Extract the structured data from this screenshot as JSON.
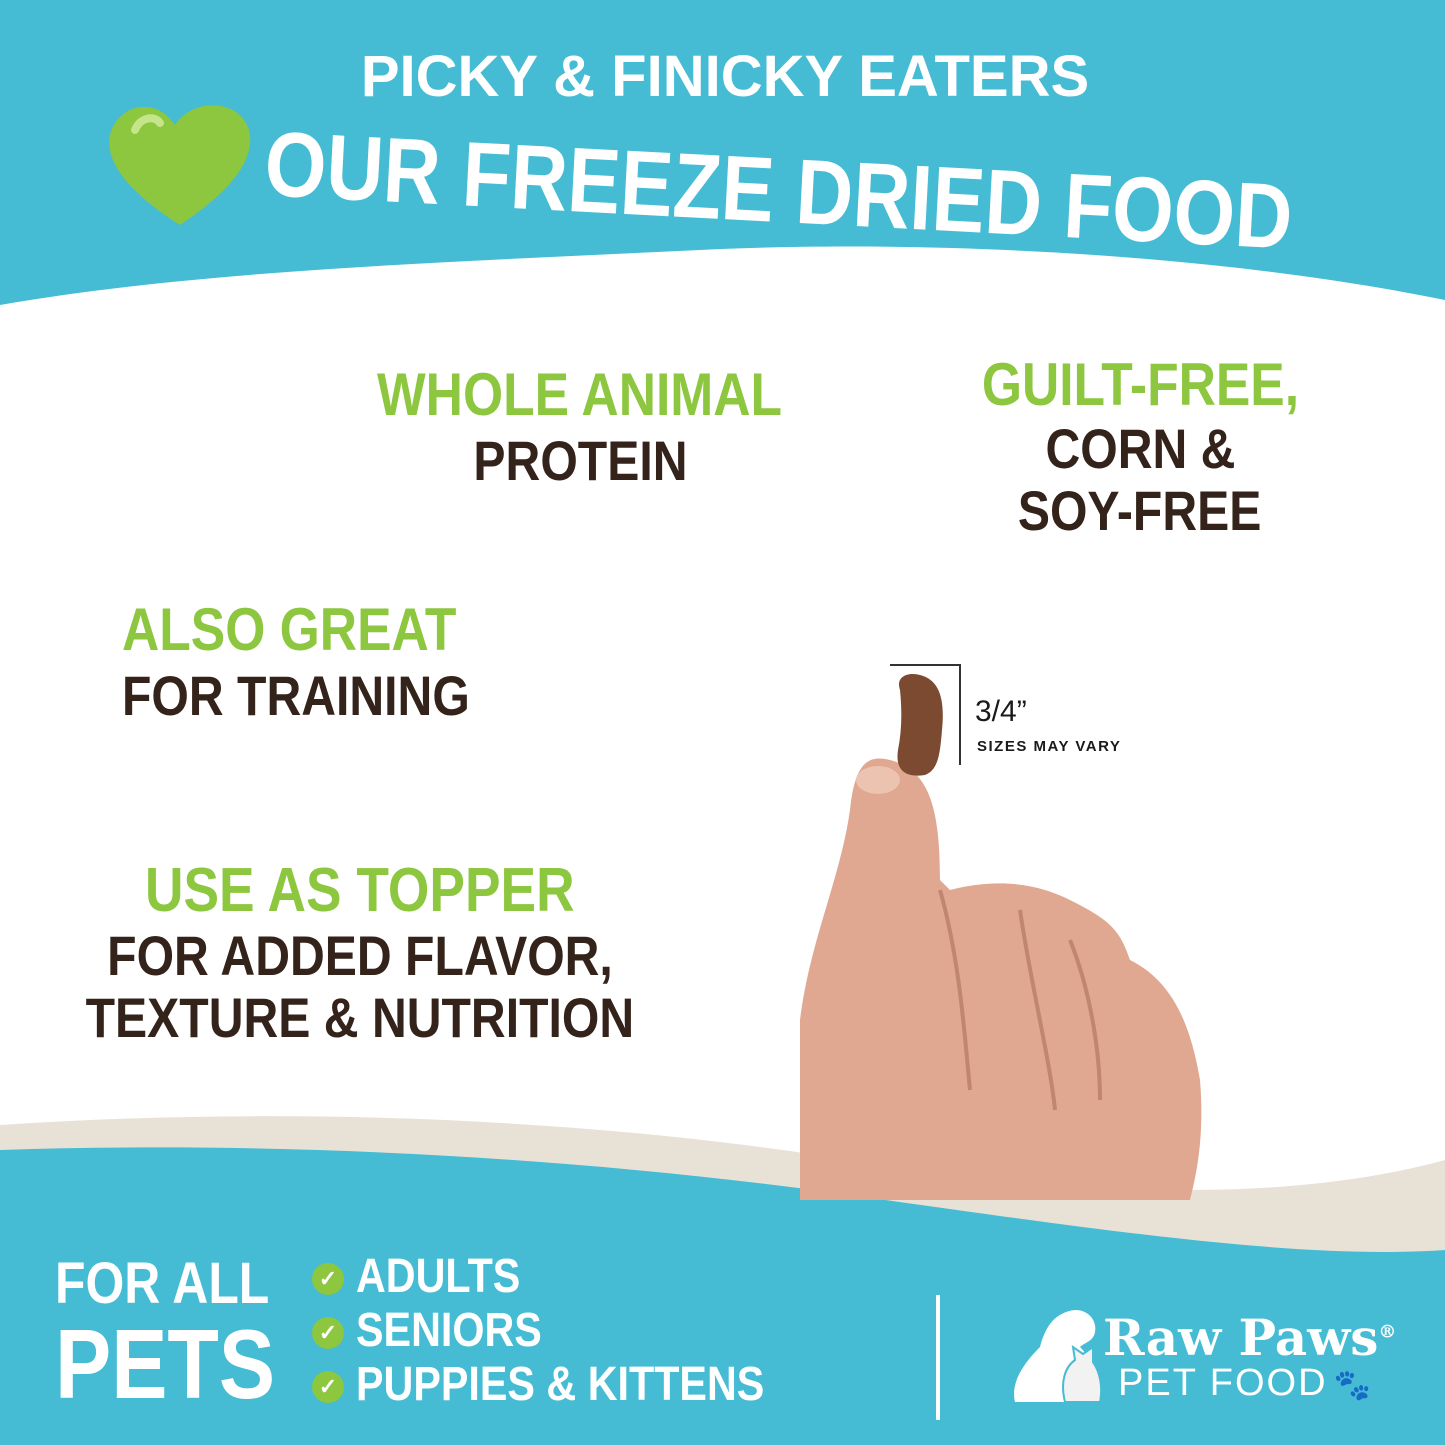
{
  "colors": {
    "teal": "#45bcd3",
    "green": "#8dc63f",
    "brown": "#33231a",
    "beige": "#e8e2d6"
  },
  "header": {
    "subtitle": "PICKY & FINICKY EATERS",
    "title": "OUR FREEZE DRIED FOOD",
    "icon": "heart-icon"
  },
  "features": [
    {
      "highlight": "WHOLE ANIMAL",
      "lines": [
        "PROTEIN"
      ]
    },
    {
      "highlight": "GUILT-FREE,",
      "lines": [
        "CORN &",
        "SOY-FREE"
      ]
    },
    {
      "highlight": "ALSO GREAT",
      "lines": [
        "FOR TRAINING"
      ]
    },
    {
      "highlight": "USE AS TOPPER",
      "lines": [
        "FOR ADDED FLAVOR,",
        "TEXTURE & NUTRITION"
      ]
    }
  ],
  "measure": {
    "size": "3/4”",
    "note": "SIZES MAY VARY"
  },
  "footer": {
    "for_all": "FOR ALL",
    "pets": "PETS",
    "items": [
      "ADULTS",
      "SENIORS",
      "PUPPIES & KITTENS"
    ],
    "brand": {
      "name": "Raw Paws",
      "registered": "®",
      "sub": "PET FOOD"
    }
  }
}
